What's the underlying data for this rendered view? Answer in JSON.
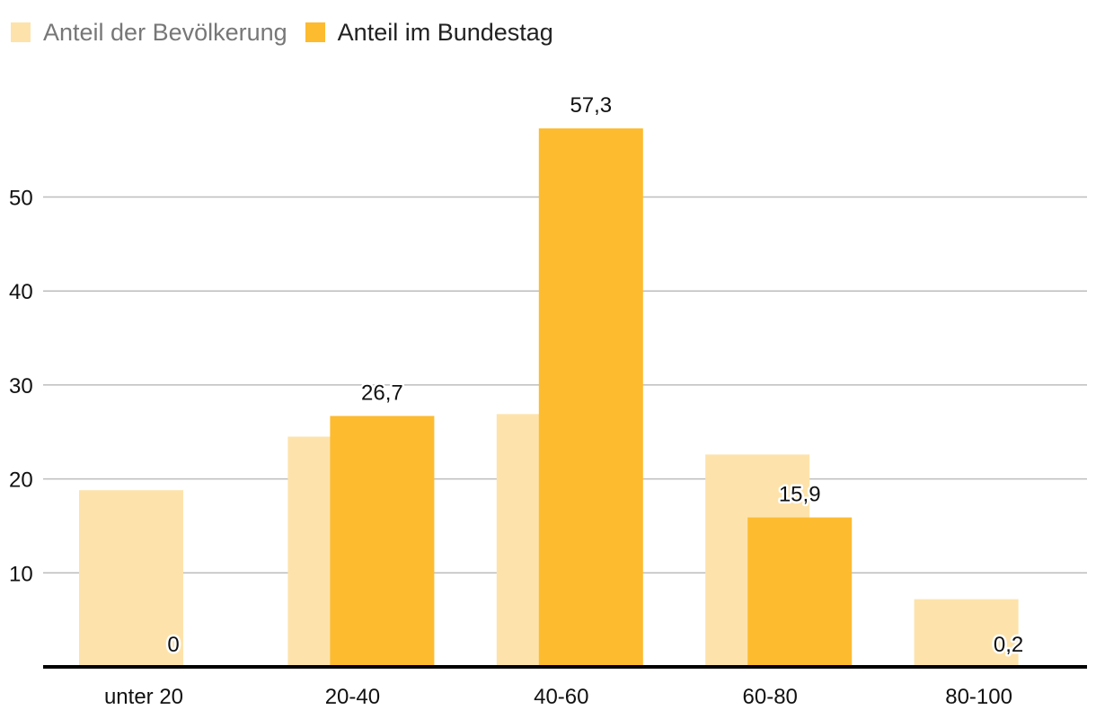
{
  "legend": {
    "pop_label": "Anteil der Bevölkerung",
    "bt_label": "Anteil im Bundestag"
  },
  "colors": {
    "population": "#fde3ab",
    "bundestag": "#fdbb30",
    "grid": "#bdbdbd",
    "axis": "#000000"
  },
  "chart_data": {
    "type": "bar",
    "title": "",
    "xlabel": "",
    "ylabel": "",
    "categories": [
      "unter 20",
      "20-40",
      "40-60",
      "60-80",
      "80-100"
    ],
    "series": [
      {
        "name": "Anteil der Bevölkerung",
        "values": [
          18.8,
          24.5,
          26.9,
          22.6,
          7.2
        ]
      },
      {
        "name": "Anteil im Bundestag",
        "values": [
          0,
          26.7,
          57.3,
          15.9,
          0.2
        ]
      }
    ],
    "data_labels": [
      "0",
      "26,7",
      "57,3",
      "15,9",
      "0,2"
    ],
    "yticks": [
      10,
      20,
      30,
      40,
      50
    ],
    "ylim": [
      0,
      60
    ],
    "grid": true,
    "legend_position": "top-left"
  }
}
